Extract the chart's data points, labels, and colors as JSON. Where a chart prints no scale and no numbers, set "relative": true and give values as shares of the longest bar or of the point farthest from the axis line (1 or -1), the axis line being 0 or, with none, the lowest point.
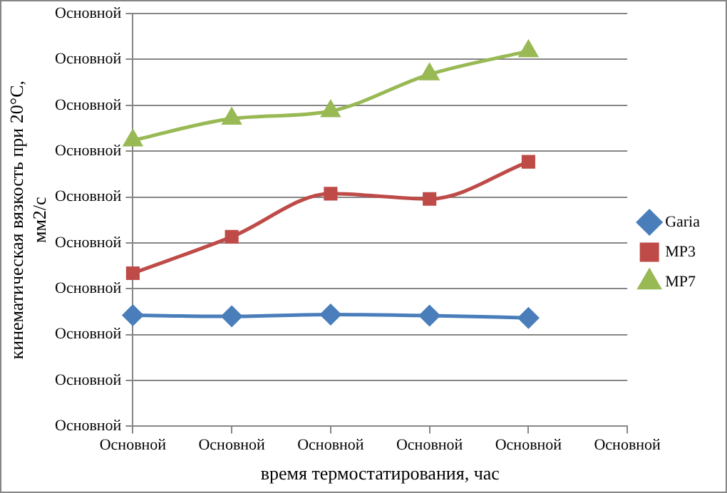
{
  "chart_data": {
    "type": "line",
    "relative": true,
    "xlabel": "время термостатирования, час",
    "ylabel": [
      "кинематическая вязкость при 20°С,",
      "мм2/с"
    ],
    "categories": [
      "Основной",
      "Основной",
      "Основной",
      "Основной",
      "Основной",
      "Основной"
    ],
    "annotations": [
      "Основной",
      "Основной",
      "Основной",
      "Основной",
      "Основной",
      "Основной",
      "Основной",
      "Основной",
      "Основной",
      "Основной"
    ],
    "series": [
      {
        "name": "Garia",
        "color": "#4a7ebb",
        "marker": "diamond",
        "values": [
          0.296,
          0.293,
          0.298,
          0.295,
          0.289,
          null
        ]
      },
      {
        "name": "MP3",
        "color": "#be4b48",
        "marker": "square",
        "values": [
          0.408,
          0.505,
          0.62,
          0.606,
          0.705,
          null
        ]
      },
      {
        "name": "MP7",
        "color": "#98b954",
        "marker": "triangle",
        "values": [
          0.762,
          0.82,
          0.84,
          0.938,
          1,
          null
        ]
      }
    ],
    "grid": "y",
    "legend": "right"
  }
}
